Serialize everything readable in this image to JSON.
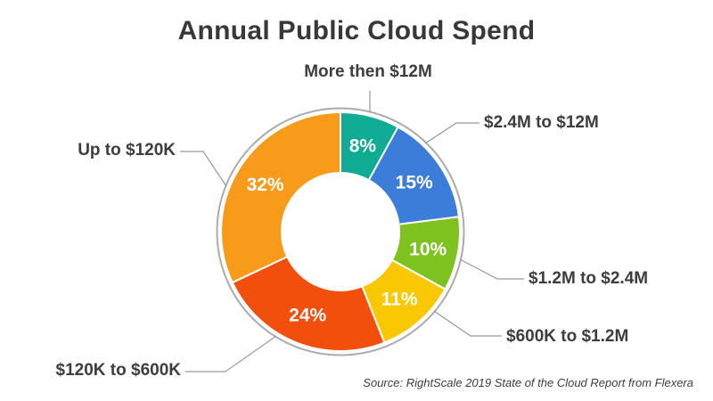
{
  "title": "Annual Public Cloud Spend",
  "source": "Source: RightScale 2019 State of the Cloud Report from Flexera",
  "chart_data": {
    "type": "pie",
    "subtype": "donut",
    "title": "Annual Public Cloud Spend",
    "unit": "%",
    "direction": "clockwise",
    "start_angle_deg": 0,
    "legend_position": "callout-labels",
    "segments": [
      {
        "label": "More then $12M",
        "value": 8,
        "pct_label": "8%",
        "color": "#0FAB94"
      },
      {
        "label": "$2.4M to $12M",
        "value": 15,
        "pct_label": "15%",
        "color": "#3C7DD9"
      },
      {
        "label": "$1.2M to $2.4M",
        "value": 10,
        "pct_label": "10%",
        "color": "#7DC21E"
      },
      {
        "label": "$600K to $1.2M",
        "value": 11,
        "pct_label": "11%",
        "color": "#F9C802"
      },
      {
        "label": "$120K to $600K",
        "value": 24,
        "pct_label": "24%",
        "color": "#F24F0D"
      },
      {
        "label": "Up to $120K",
        "value": 32,
        "pct_label": "32%",
        "color": "#F89B1B"
      }
    ],
    "ring_color": "#ABABAB",
    "leader_line_color": "#999999",
    "label_color": "#3d3d3d",
    "title_color": "#383838",
    "segment_separator_color": "#ffffff"
  }
}
